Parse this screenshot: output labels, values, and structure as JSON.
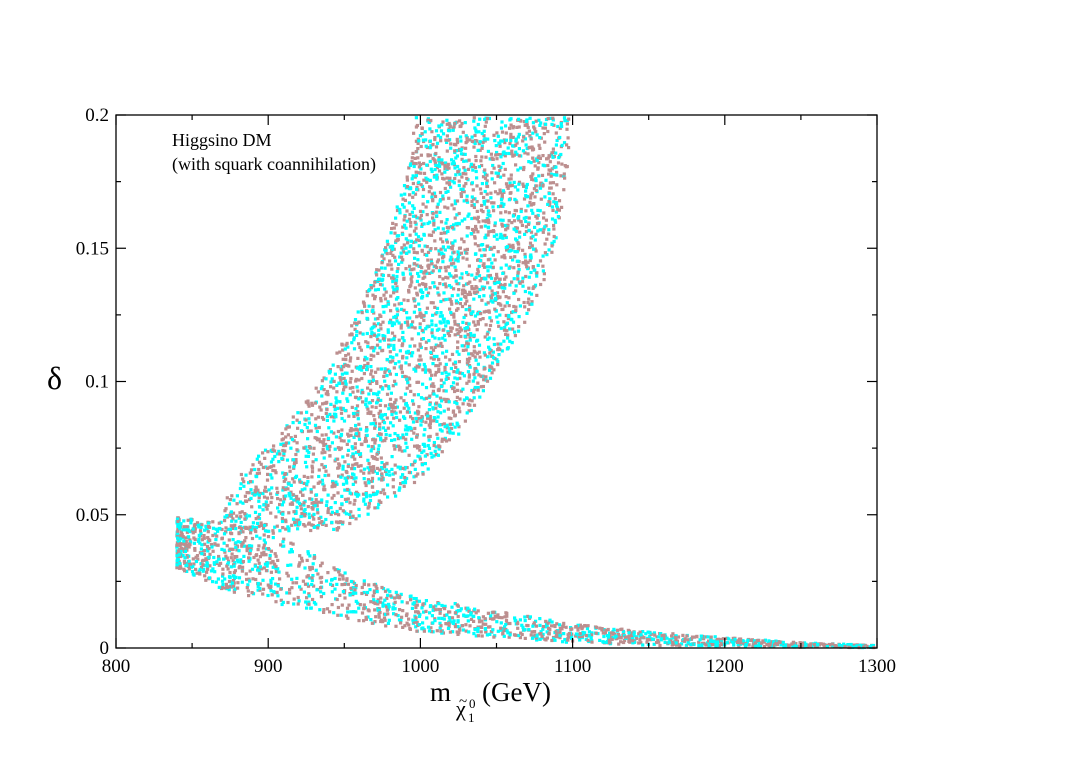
{
  "chart_data": {
    "type": "scatter",
    "title": "",
    "annotation_lines": [
      "Higgsino DM",
      "(with squark coannihilation)"
    ],
    "xlabel": {
      "main": "m",
      "sub_symbol": "χ",
      "sub_tilde": "~",
      "sub_superscript": "0",
      "sub_subscript": "1",
      "unit": "(GeV)"
    },
    "ylabel": "δ",
    "xlim": [
      800,
      1300
    ],
    "ylim": [
      0,
      0.2
    ],
    "x_ticks": [
      800,
      900,
      1000,
      1100,
      1200,
      1300
    ],
    "x_tick_labels": [
      "800",
      "900",
      "1000",
      "1100",
      "1200",
      "1300"
    ],
    "y_ticks": [
      0,
      0.05,
      0.1,
      0.15,
      0.2
    ],
    "y_tick_labels": [
      "0",
      "0.05",
      "0.1",
      "0.15",
      "0.2"
    ],
    "x_minor_step": 50,
    "y_minor_step": 0.025,
    "grid": false,
    "colors": {
      "series_a": "#bc8f8f",
      "series_b": "#00ffff",
      "axis": "#000000",
      "background": "#ffffff"
    },
    "series": [
      {
        "name": "brown points",
        "color": "#bc8f8f"
      },
      {
        "name": "cyan points",
        "color": "#00ffff"
      }
    ],
    "regions": {
      "upper_band": [
        {
          "y": 0.199,
          "xmin": 997,
          "xmax": 1098
        },
        {
          "y": 0.18,
          "xmin": 992,
          "xmax": 1097
        },
        {
          "y": 0.16,
          "xmin": 982,
          "xmax": 1092
        },
        {
          "y": 0.14,
          "xmin": 970,
          "xmax": 1083
        },
        {
          "y": 0.12,
          "xmin": 954,
          "xmax": 1067
        },
        {
          "y": 0.1,
          "xmin": 935,
          "xmax": 1045
        },
        {
          "y": 0.08,
          "xmin": 907,
          "xmax": 1025
        },
        {
          "y": 0.065,
          "xmin": 880,
          "xmax": 1003
        },
        {
          "y": 0.055,
          "xmin": 872,
          "xmax": 980
        },
        {
          "y": 0.048,
          "xmin": 868,
          "xmax": 960
        },
        {
          "y": 0.044,
          "xmin": 866,
          "xmax": 948
        }
      ],
      "lower_band": [
        {
          "x": 840,
          "ylo": 0.03,
          "yhi": 0.049
        },
        {
          "x": 870,
          "ylo": 0.022,
          "yhi": 0.047
        },
        {
          "x": 900,
          "ylo": 0.017,
          "yhi": 0.044
        },
        {
          "x": 930,
          "ylo": 0.014,
          "yhi": 0.036
        },
        {
          "x": 960,
          "ylo": 0.01,
          "yhi": 0.026
        },
        {
          "x": 1000,
          "ylo": 0.006,
          "yhi": 0.019
        },
        {
          "x": 1050,
          "ylo": 0.004,
          "yhi": 0.014
        },
        {
          "x": 1100,
          "ylo": 0.002,
          "yhi": 0.009
        },
        {
          "x": 1150,
          "ylo": 0.001,
          "yhi": 0.006
        },
        {
          "x": 1200,
          "ylo": 0.0005,
          "yhi": 0.004
        },
        {
          "x": 1250,
          "ylo": 0.0003,
          "yhi": 0.002
        },
        {
          "x": 1298,
          "ylo": 0.0001,
          "yhi": 0.001
        }
      ],
      "point_count_upper": 3400,
      "point_count_lower": 1700,
      "random_seed": 12345
    }
  }
}
